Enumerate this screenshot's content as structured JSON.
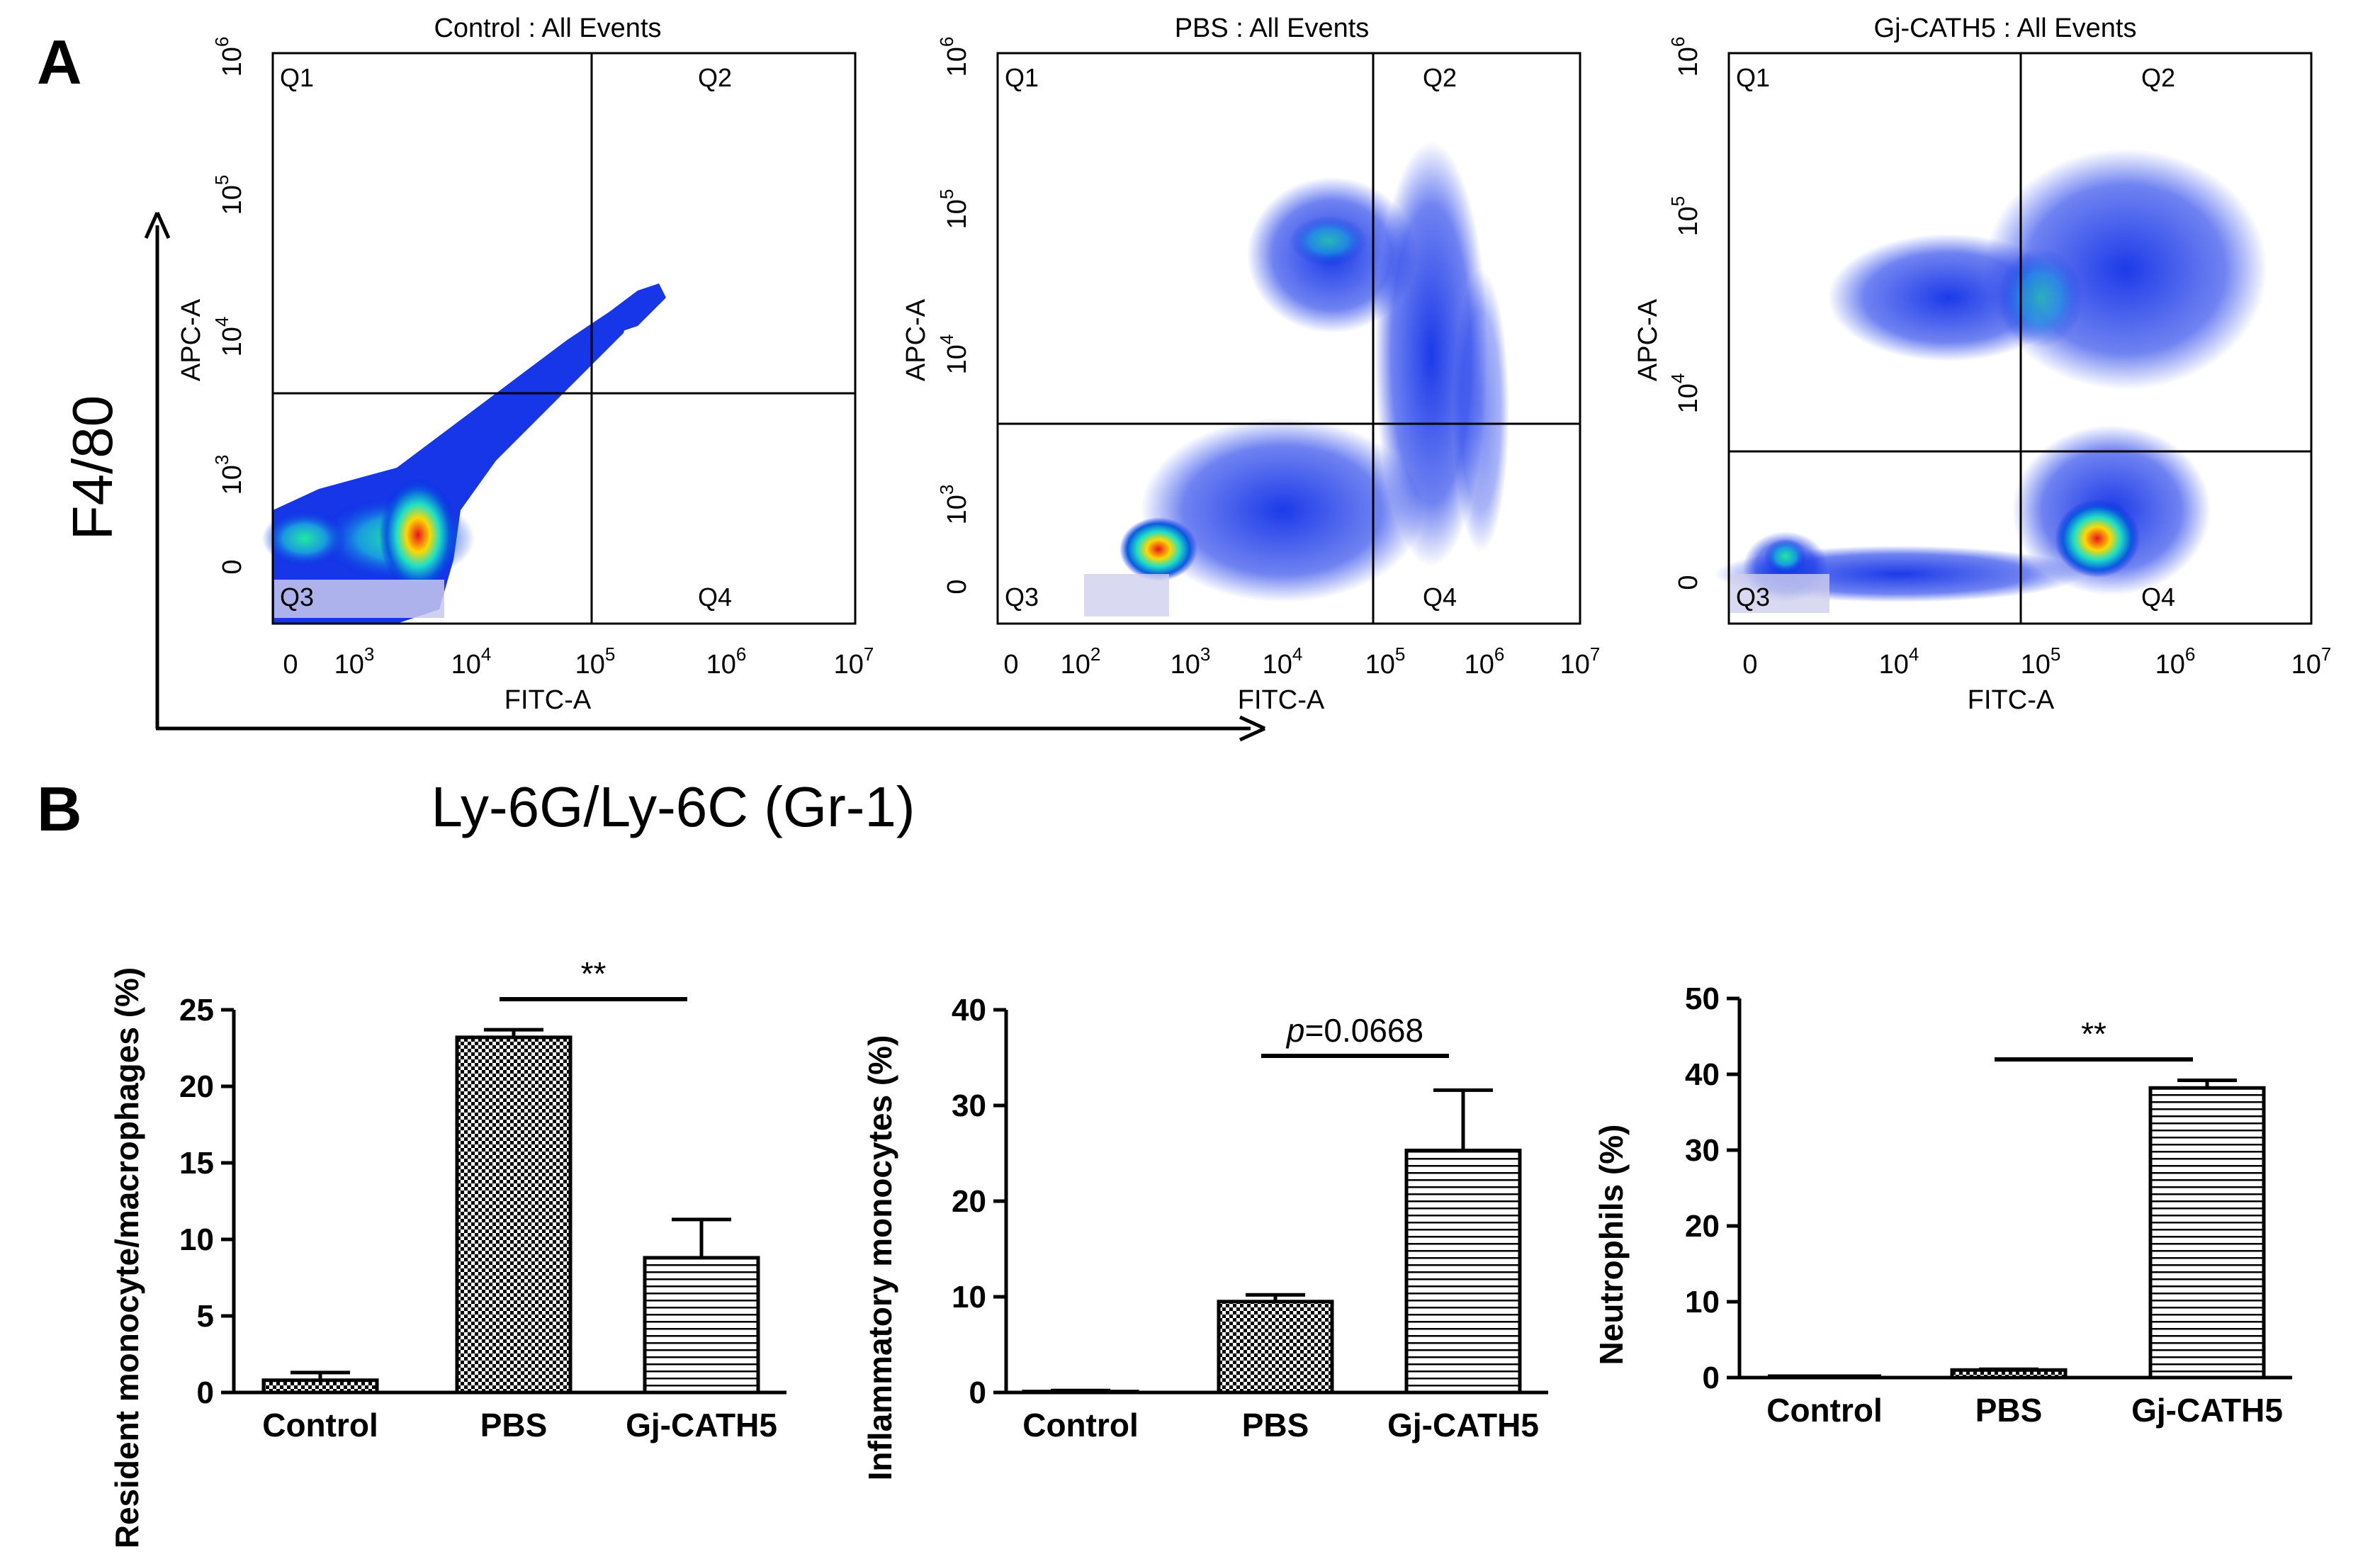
{
  "panel_a_label": "A",
  "panel_b_label": "B",
  "axis_f480": "F4/80",
  "axis_gr1": "Ly-6G/Ly-6C (Gr-1)",
  "flow_plots": [
    {
      "title": "Control : All Events",
      "xlabel": "FITC-A",
      "ylabel": "APC-A",
      "quadrants": [
        "Q1",
        "Q2",
        "Q3",
        "Q4"
      ],
      "x_ticks": [
        {
          "base": "0",
          "exp": ""
        },
        {
          "base": "10",
          "exp": "3"
        },
        {
          "base": "10",
          "exp": "4"
        },
        {
          "base": "10",
          "exp": "5"
        },
        {
          "base": "10",
          "exp": "6"
        },
        {
          "base": "10",
          "exp": "7"
        }
      ],
      "y_ticks": [
        {
          "base": "0",
          "exp": ""
        },
        {
          "base": "10",
          "exp": "3"
        },
        {
          "base": "10",
          "exp": "4"
        },
        {
          "base": "10",
          "exp": "5"
        },
        {
          "base": "10",
          "exp": "6"
        }
      ]
    },
    {
      "title": "PBS : All Events",
      "xlabel": "FITC-A",
      "ylabel": "APC-A",
      "quadrants": [
        "Q1",
        "Q2",
        "Q3",
        "Q4"
      ],
      "x_ticks": [
        {
          "base": "0",
          "exp": ""
        },
        {
          "base": "10",
          "exp": "2"
        },
        {
          "base": "10",
          "exp": "3"
        },
        {
          "base": "10",
          "exp": "4"
        },
        {
          "base": "10",
          "exp": "5"
        },
        {
          "base": "10",
          "exp": "6"
        },
        {
          "base": "10",
          "exp": "7"
        }
      ],
      "y_ticks": [
        {
          "base": "0",
          "exp": ""
        },
        {
          "base": "10",
          "exp": "3"
        },
        {
          "base": "10",
          "exp": "4"
        },
        {
          "base": "10",
          "exp": "5"
        },
        {
          "base": "10",
          "exp": "6"
        }
      ]
    },
    {
      "title": "Gj-CATH5 : All Events",
      "xlabel": "FITC-A",
      "ylabel": "APC-A",
      "quadrants": [
        "Q1",
        "Q2",
        "Q3",
        "Q4"
      ],
      "x_ticks": [
        {
          "base": "0",
          "exp": ""
        },
        {
          "base": "10",
          "exp": "4"
        },
        {
          "base": "10",
          "exp": "5"
        },
        {
          "base": "10",
          "exp": "6"
        },
        {
          "base": "10",
          "exp": "7"
        }
      ],
      "y_ticks": [
        {
          "base": "0",
          "exp": ""
        },
        {
          "base": "10",
          "exp": "4"
        },
        {
          "base": "10",
          "exp": "5"
        },
        {
          "base": "10",
          "exp": "6"
        }
      ]
    }
  ],
  "chart_data": [
    {
      "type": "bar",
      "title": "",
      "xlabel": "",
      "ylabel": "Resident monocyte/macrophages (%)",
      "categories": [
        "Control",
        "PBS",
        "Gj-CATH5"
      ],
      "values": [
        0.8,
        23.2,
        8.8
      ],
      "errors": [
        0.5,
        0.5,
        2.5
      ],
      "ylim": [
        0,
        25
      ],
      "yticks": [
        "0",
        "5",
        "10",
        "15",
        "20",
        "25"
      ],
      "significance": {
        "text": "**",
        "between": [
          "PBS",
          "Gj-CATH5"
        ]
      }
    },
    {
      "type": "bar",
      "title": "",
      "xlabel": "",
      "ylabel": "Inflammatory monocytes (%)",
      "categories": [
        "Control",
        "PBS",
        "Gj-CATH5"
      ],
      "values": [
        0.1,
        9.5,
        25.3
      ],
      "errors": [
        0.1,
        0.7,
        6.3
      ],
      "ylim": [
        0,
        40
      ],
      "yticks": [
        "0",
        "10",
        "20",
        "30",
        "40"
      ],
      "significance": {
        "text": "=0.0668",
        "prefix": "p",
        "between": [
          "PBS",
          "Gj-CATH5"
        ]
      }
    },
    {
      "type": "bar",
      "title": "",
      "xlabel": "",
      "ylabel": "Neutrophils (%)",
      "categories": [
        "Control",
        "PBS",
        "Gj-CATH5"
      ],
      "values": [
        0.0,
        1.0,
        38.2
      ],
      "errors": [
        0.0,
        0.1,
        1.0
      ],
      "ylim": [
        0,
        50
      ],
      "yticks": [
        "0",
        "10",
        "20",
        "30",
        "40",
        "50"
      ],
      "significance": {
        "text": "**",
        "between": [
          "PBS",
          "Gj-CATH5"
        ]
      }
    }
  ]
}
